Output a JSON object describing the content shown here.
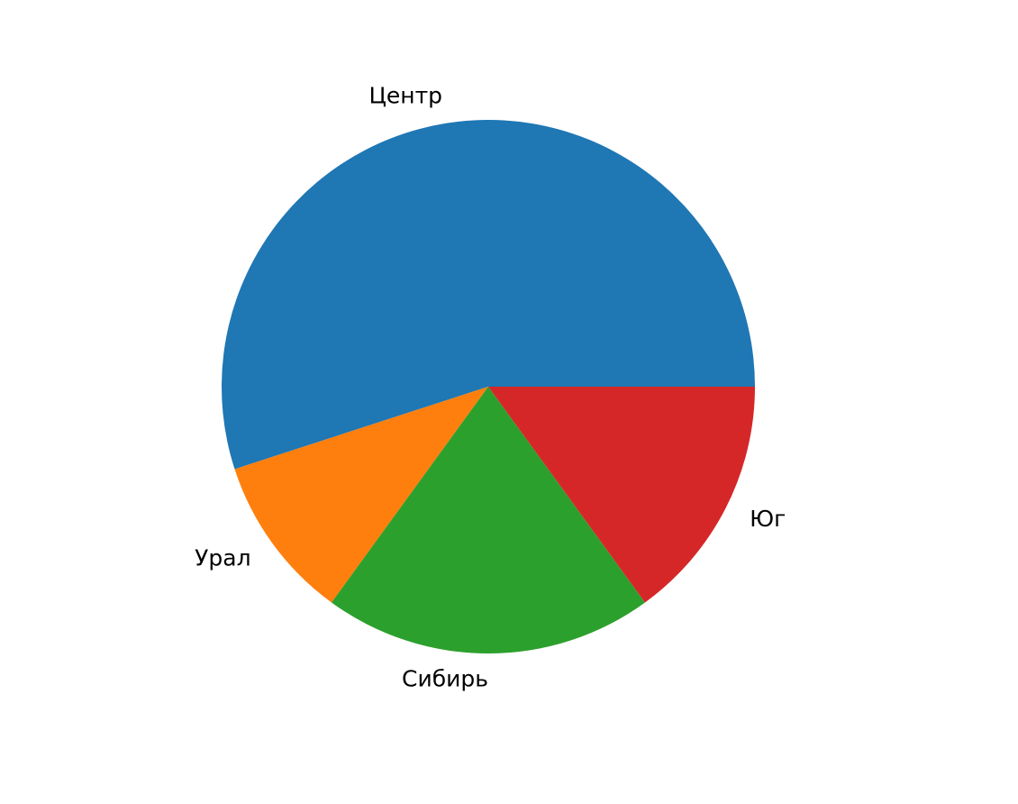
{
  "chart_data": {
    "type": "pie",
    "categories": [
      "Центр",
      "Урал",
      "Сибирь",
      "Юг"
    ],
    "values": [
      55,
      10,
      20,
      15
    ],
    "colors": [
      "#1f77b4",
      "#ff7f0e",
      "#2ca02c",
      "#d62728"
    ],
    "start_angle": 0,
    "direction": "counterclockwise",
    "title": ""
  }
}
